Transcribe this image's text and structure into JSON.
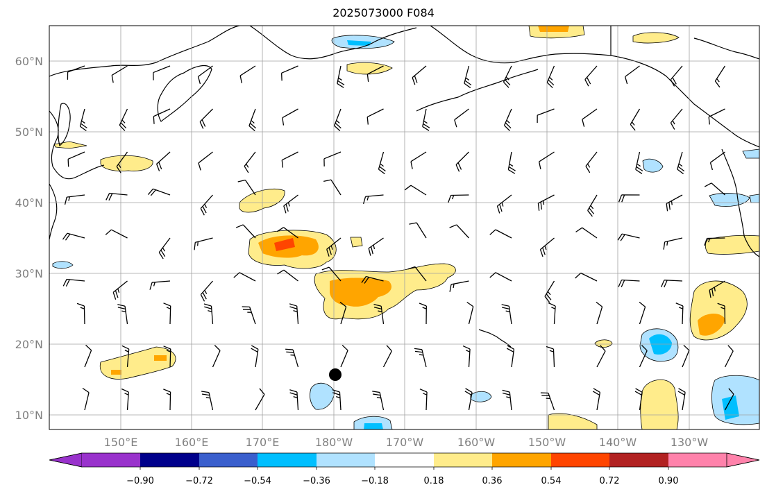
{
  "title": "2025073000 F084",
  "map": {
    "lon_labels": [
      "150°E",
      "160°E",
      "170°E",
      "180°W",
      "170°W",
      "160°W",
      "150°W",
      "140°W",
      "130°W"
    ],
    "lat_labels": [
      "60°N",
      "50°N",
      "40°N",
      "30°N",
      "20°N",
      "10°N"
    ],
    "gridlines": true,
    "marker": "storm-center-dot"
  },
  "colorbar": {
    "extend": "both",
    "colors": [
      "#9932cc",
      "#00008b",
      "#3a5fcd",
      "#00bfff",
      "#b0e2ff",
      "#ffffff",
      "#ffec8b",
      "#ffa500",
      "#ff4500",
      "#b22222",
      "#ff82ab"
    ],
    "tick_labels": [
      "−0.90",
      "−0.72",
      "−0.54",
      "−0.36",
      "−0.18",
      "0.18",
      "0.36",
      "0.54",
      "0.72",
      "0.90"
    ]
  },
  "colors": {
    "land_outline": "#000000",
    "grid": "#a0a0a0",
    "positive_light": "#ffec8b",
    "positive_mid": "#ffa500",
    "positive_high": "#ff4500",
    "negative_light": "#b0e2ff",
    "negative_mid": "#00bfff"
  }
}
